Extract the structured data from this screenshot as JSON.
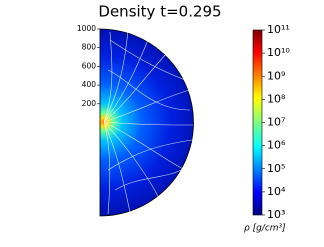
{
  "chart_data": {
    "type": "heatmap",
    "title": "Density t=0.295",
    "ylim": [
      -1000,
      1000
    ],
    "yticks": [
      200,
      400,
      600,
      800,
      1000
    ],
    "colorbar": {
      "label": "ρ [g/cm³]",
      "log": true,
      "lim": [
        1000,
        100000000000
      ],
      "ticks": [
        {
          "value": 1000,
          "label": "10³"
        },
        {
          "value": 10000,
          "label": "10⁴"
        },
        {
          "value": 100000,
          "label": "10⁵"
        },
        {
          "value": 1000000,
          "label": "10⁶"
        },
        {
          "value": 10000000,
          "label": "10⁷"
        },
        {
          "value": 100000000,
          "label": "10⁸"
        },
        {
          "value": 1000000000,
          "label": "10⁹"
        },
        {
          "value": 10000000000,
          "label": "10¹⁰"
        },
        {
          "value": 100000000000,
          "label": "10¹¹"
        }
      ]
    }
  }
}
